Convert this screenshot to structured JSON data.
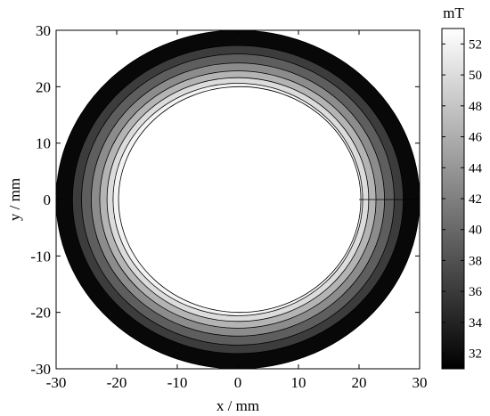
{
  "chart_data": {
    "type": "heatmap",
    "subtype": "filled-contour",
    "xlabel": "x / mm",
    "ylabel": "y / mm",
    "xlim": [
      -30,
      30
    ],
    "ylim": [
      -30,
      30
    ],
    "xticks": [
      -30,
      -20,
      -10,
      0,
      10,
      20,
      30
    ],
    "yticks": [
      -30,
      -20,
      -10,
      0,
      10,
      20,
      30
    ],
    "grid": false,
    "colorbar": {
      "unit": "mT",
      "range": [
        31,
        53
      ],
      "ticks": [
        32,
        34,
        36,
        38,
        40,
        42,
        44,
        46,
        48,
        50,
        52
      ],
      "colormap": "gray"
    },
    "annulus": {
      "inner_radius": 20,
      "outer_radius": 30
    },
    "contour_bands": [
      {
        "r_outer": 30.0,
        "r_inner": 27.3,
        "value": 31.5,
        "color": "#080808"
      },
      {
        "r_outer": 27.3,
        "r_inner": 25.8,
        "value": 36.0,
        "color": "#3c3c3c"
      },
      {
        "r_outer": 25.8,
        "r_inner": 24.2,
        "value": 40.0,
        "color": "#5e5e5e"
      },
      {
        "r_outer": 24.2,
        "r_inner": 22.8,
        "value": 44.0,
        "color": "#8c8c8c"
      },
      {
        "r_outer": 22.8,
        "r_inner": 21.6,
        "value": 47.0,
        "color": "#b4b4b4"
      },
      {
        "r_outer": 21.6,
        "r_inner": 20.6,
        "value": 50.0,
        "color": "#dcdcdc"
      },
      {
        "r_outer": 20.6,
        "r_inner": 20.0,
        "value": 52.0,
        "color": "#f3f3f3"
      }
    ]
  }
}
